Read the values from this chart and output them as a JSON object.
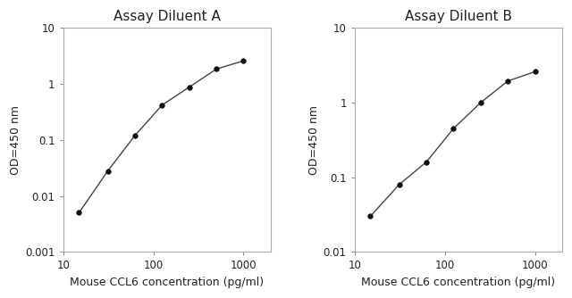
{
  "title_a": "Assay Diluent A",
  "title_b": "Assay Diluent B",
  "xlabel": "Mouse CCL6 concentration (pg/ml)",
  "ylabel": "OD=450 nm",
  "x_a": [
    15,
    31.25,
    62.5,
    125,
    250,
    500,
    1000
  ],
  "y_a": [
    0.005,
    0.028,
    0.12,
    0.42,
    0.88,
    1.85,
    2.6
  ],
  "x_b": [
    15,
    31.25,
    62.5,
    125,
    250,
    500,
    1000
  ],
  "y_b": [
    0.03,
    0.08,
    0.16,
    0.45,
    1.0,
    1.95,
    2.6
  ],
  "xlim": [
    10,
    2000
  ],
  "ylim_a": [
    0.001,
    10
  ],
  "ylim_b": [
    0.01,
    10
  ],
  "line_color": "#444444",
  "marker_color": "#111111",
  "bg_color": "#ffffff",
  "ax_bg_color": "#ffffff",
  "spine_color": "#aaaaaa",
  "title_fontsize": 11,
  "label_fontsize": 9,
  "tick_fontsize": 8.5,
  "xticks": [
    10,
    100,
    1000
  ],
  "xtick_labels": [
    "10",
    "100",
    "1000"
  ],
  "yticks_a": [
    0.001,
    0.01,
    0.1,
    1,
    10
  ],
  "ytick_labels_a": [
    "0.001",
    "0.01",
    "0.1",
    "1",
    "10"
  ],
  "yticks_b": [
    0.01,
    0.1,
    1,
    10
  ],
  "ytick_labels_b": [
    "0.01",
    "0.1",
    "1",
    "10"
  ]
}
